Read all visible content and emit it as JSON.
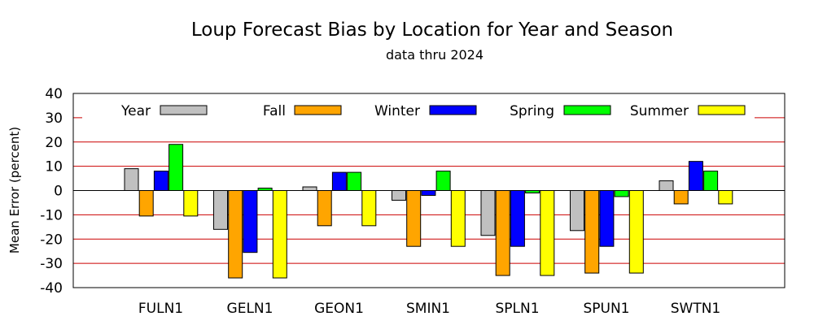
{
  "chart_data": {
    "type": "bar",
    "title": "Loup Forecast Bias by Location for Year and Season",
    "subtitle": "data thru 2024",
    "ylabel": "Mean Error (percent)",
    "xlabel": "",
    "ylim": [
      -40,
      40
    ],
    "yticks": [
      "40",
      "30",
      "20",
      "10",
      "0",
      "-10",
      "-20",
      "-30",
      "-40"
    ],
    "grid": true,
    "legend_position": "top",
    "categories": [
      "FULN1",
      "GELN1",
      "GEON1",
      "SMIN1",
      "SPLN1",
      "SPUN1",
      "SWTN1"
    ],
    "series": [
      {
        "name": "Year",
        "color": "#c0c0c0",
        "values": [
          9,
          -16,
          1.5,
          -4,
          -18.5,
          -16.5,
          4
        ]
      },
      {
        "name": "Fall",
        "color": "#ffa500",
        "values": [
          -10.5,
          -36,
          -14.5,
          -23,
          -35,
          -34,
          -5.5
        ]
      },
      {
        "name": "Winter",
        "color": "#0000ff",
        "values": [
          8,
          -25.5,
          7.5,
          -2,
          -23,
          -23,
          12
        ]
      },
      {
        "name": "Spring",
        "color": "#00ff00",
        "values": [
          19,
          1,
          7.5,
          8,
          -1,
          -2.5,
          8
        ]
      },
      {
        "name": "Summer",
        "color": "#ffff00",
        "values": [
          -10.5,
          -36,
          -14.5,
          -23,
          -35,
          -34,
          -5.5
        ]
      }
    ],
    "grid_color": "#cc0000"
  }
}
